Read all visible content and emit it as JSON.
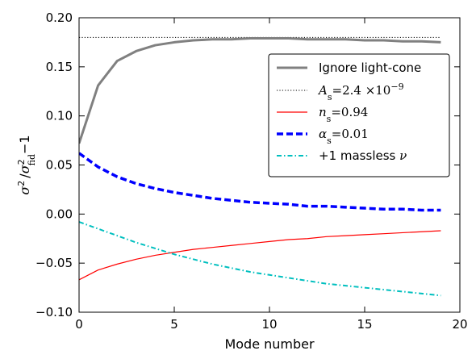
{
  "chart_data": {
    "type": "line",
    "xlabel": "Mode number",
    "ylabel": {
      "sigma": "σ",
      "sup": "2",
      "slash": "/",
      "sub": "fid",
      "minus": "−1"
    },
    "xlim": [
      0,
      20
    ],
    "ylim": [
      -0.1,
      0.2
    ],
    "xticks": [
      0,
      5,
      10,
      15,
      20
    ],
    "xtick_labels": [
      "0",
      "5",
      "10",
      "15",
      "20"
    ],
    "yticks": [
      -0.1,
      -0.05,
      0.0,
      0.05,
      0.1,
      0.15,
      0.2
    ],
    "ytick_labels": [
      "−0.10",
      "−0.05",
      "0.00",
      "0.05",
      "0.10",
      "0.15",
      "0.20"
    ],
    "grid": false,
    "legend_position": "upper-right",
    "series": [
      {
        "name": "Ignore light-cone",
        "color": "#808080",
        "style": "solid-thick",
        "x": [
          0,
          1,
          2,
          3,
          4,
          5,
          6,
          7,
          8,
          9,
          10,
          11,
          12,
          13,
          14,
          15,
          16,
          17,
          18,
          19
        ],
        "y": [
          0.072,
          0.131,
          0.156,
          0.166,
          0.172,
          0.175,
          0.177,
          0.178,
          0.178,
          0.179,
          0.179,
          0.179,
          0.178,
          0.178,
          0.178,
          0.177,
          0.177,
          0.176,
          0.176,
          0.175
        ]
      },
      {
        "name": "A_s = 2.4 × 10^-9",
        "legend": {
          "sym": "A",
          "sub": "s",
          "eq": "=2.4 ×10",
          "sup": "−9"
        },
        "color": "#000000",
        "style": "dotted",
        "x": [
          0,
          19
        ],
        "y": [
          0.18,
          0.18
        ]
      },
      {
        "name": "n_s = 0.94",
        "legend": {
          "sym": "n",
          "sub": "s",
          "eq": "=0.94"
        },
        "color": "#ff0000",
        "style": "solid-thin",
        "x": [
          0,
          1,
          2,
          3,
          4,
          5,
          6,
          7,
          8,
          9,
          10,
          11,
          12,
          13,
          14,
          15,
          16,
          17,
          18,
          19
        ],
        "y": [
          -0.067,
          -0.057,
          -0.051,
          -0.046,
          -0.042,
          -0.039,
          -0.036,
          -0.034,
          -0.032,
          -0.03,
          -0.028,
          -0.026,
          -0.025,
          -0.023,
          -0.022,
          -0.021,
          -0.02,
          -0.019,
          -0.018,
          -0.017
        ]
      },
      {
        "name": "α_s = 0.01",
        "legend": {
          "sym": "α",
          "sub": "s",
          "eq": "=0.01"
        },
        "color": "#0000ff",
        "style": "dashed-thick",
        "x": [
          0,
          1,
          2,
          3,
          4,
          5,
          6,
          7,
          8,
          9,
          10,
          11,
          12,
          13,
          14,
          15,
          16,
          17,
          18,
          19
        ],
        "y": [
          0.062,
          0.048,
          0.038,
          0.031,
          0.026,
          0.022,
          0.019,
          0.016,
          0.014,
          0.012,
          0.011,
          0.01,
          0.008,
          0.008,
          0.007,
          0.006,
          0.005,
          0.005,
          0.004,
          0.004
        ]
      },
      {
        "name": "+1 massless ν",
        "legend": {
          "text": "+1 massless ",
          "sym": "ν"
        },
        "color": "#00bfbf",
        "style": "dashdot",
        "x": [
          0,
          1,
          2,
          3,
          4,
          5,
          6,
          7,
          8,
          9,
          10,
          11,
          12,
          13,
          14,
          15,
          16,
          17,
          18,
          19
        ],
        "y": [
          -0.008,
          -0.015,
          -0.022,
          -0.029,
          -0.035,
          -0.041,
          -0.046,
          -0.051,
          -0.055,
          -0.059,
          -0.062,
          -0.065,
          -0.068,
          -0.071,
          -0.073,
          -0.075,
          -0.077,
          -0.079,
          -0.081,
          -0.083
        ]
      }
    ]
  }
}
